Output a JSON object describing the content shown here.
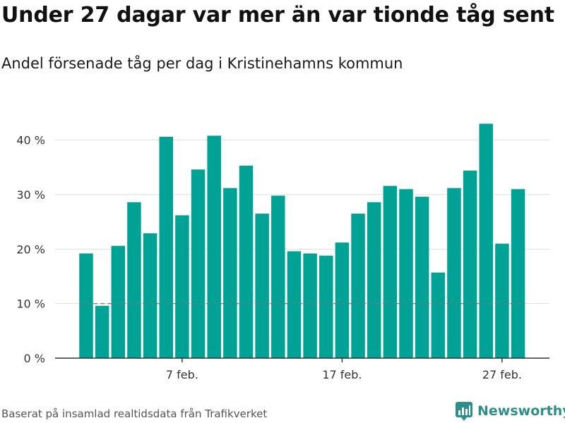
{
  "title": "Under 27 dagar var mer än var tionde tåg sent",
  "subtitle": "Andel försenade tåg per dag i Kristinehamns kommun",
  "footer": "Baserat på insamlad realtidsdata från Trafikverket",
  "brand": {
    "name": "Newsworthy",
    "logo_icon": "bar-chart-icon",
    "color": "#2e8f8a"
  },
  "colors": {
    "bar": "#00a295",
    "grid": "#dddddd",
    "axis": "#333333",
    "reference": "#777777"
  },
  "chart_data": {
    "type": "bar",
    "x_unit": "day of February",
    "x": [
      1,
      2,
      3,
      4,
      5,
      6,
      7,
      8,
      9,
      10,
      11,
      12,
      13,
      14,
      15,
      16,
      17,
      18,
      19,
      20,
      21,
      22,
      23,
      24,
      25,
      26,
      27,
      28
    ],
    "values": [
      19.2,
      9.6,
      20.6,
      28.6,
      22.9,
      40.6,
      26.2,
      34.6,
      40.8,
      31.2,
      35.3,
      26.5,
      29.8,
      19.6,
      19.2,
      18.8,
      21.2,
      26.5,
      28.6,
      31.6,
      31.0,
      29.6,
      15.7,
      31.2,
      34.4,
      43.0,
      21.0,
      31.0
    ],
    "reference_line": 10,
    "ylim": [
      0,
      45
    ],
    "yticks": [
      {
        "value": 0,
        "label": "0 %"
      },
      {
        "value": 10,
        "label": "10 %"
      },
      {
        "value": 20,
        "label": "20 %"
      },
      {
        "value": 30,
        "label": "30 %"
      },
      {
        "value": 40,
        "label": "40 %"
      }
    ],
    "xticks": [
      {
        "value": 7,
        "label": "7 feb."
      },
      {
        "value": 17,
        "label": "17 feb."
      },
      {
        "value": 27,
        "label": "27 feb."
      }
    ],
    "grid": "horizontal"
  }
}
